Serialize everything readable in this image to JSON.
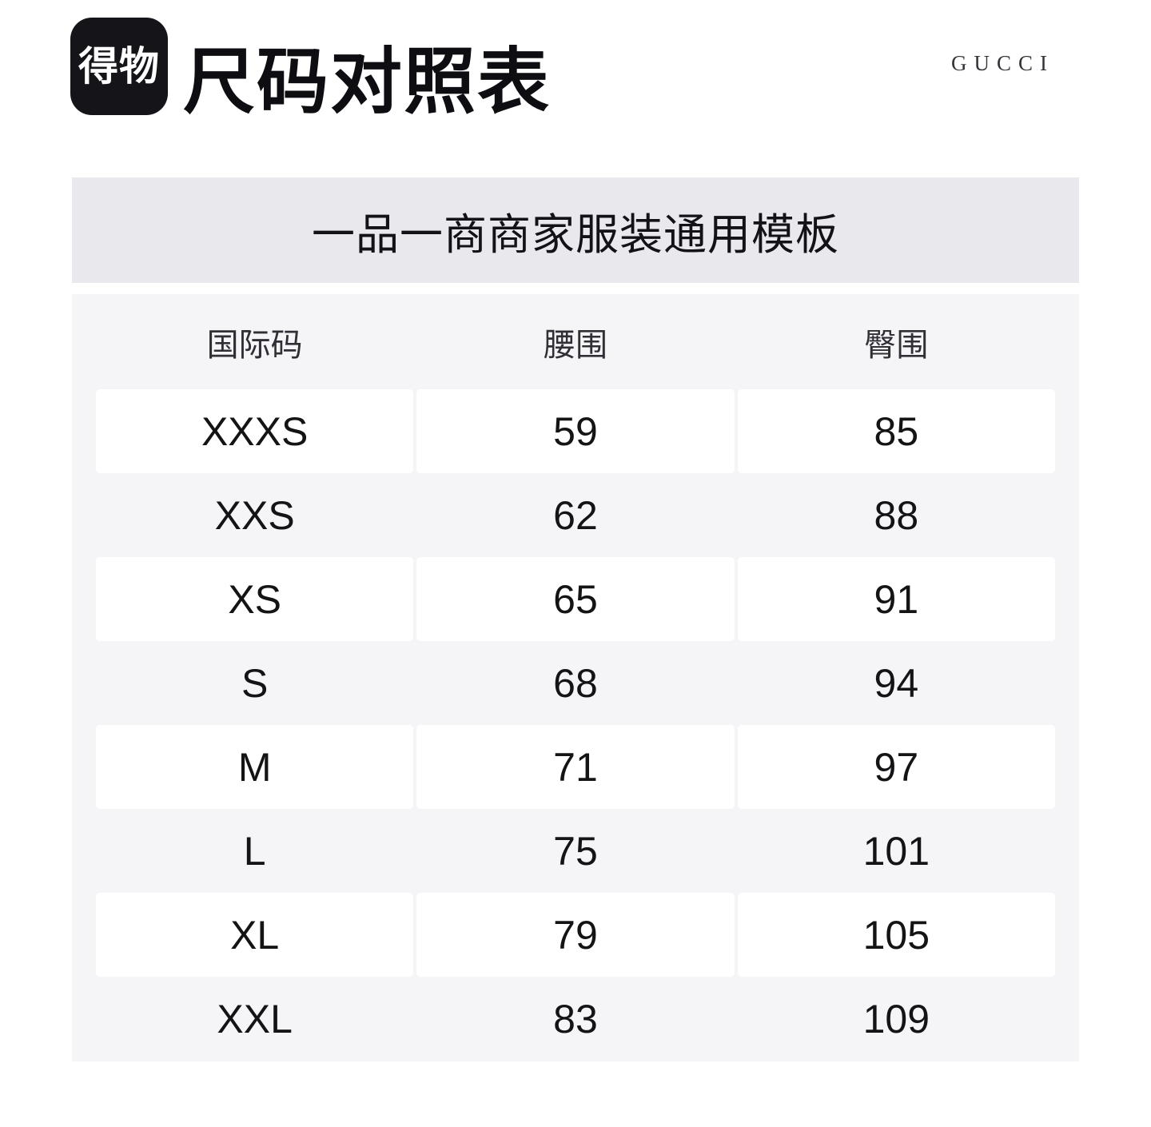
{
  "header": {
    "logo_text": "得物",
    "title": "尺码对照表",
    "brand": "GUCCI"
  },
  "banner": {
    "text": "一品一商商家服装通用模板"
  },
  "size_table": {
    "columns": [
      "国际码",
      "腰围",
      "臀围"
    ],
    "rows": [
      {
        "size": "XXXS",
        "waist": "59",
        "hip": "85"
      },
      {
        "size": "XXS",
        "waist": "62",
        "hip": "88"
      },
      {
        "size": "XS",
        "waist": "65",
        "hip": "91"
      },
      {
        "size": "S",
        "waist": "68",
        "hip": "94"
      },
      {
        "size": "M",
        "waist": "71",
        "hip": "97"
      },
      {
        "size": "L",
        "waist": "75",
        "hip": "101"
      },
      {
        "size": "XL",
        "waist": "79",
        "hip": "105"
      },
      {
        "size": "XXL",
        "waist": "83",
        "hip": "109"
      }
    ]
  },
  "colors": {
    "logo_bg": "#141419",
    "banner_bg": "#e9e8ed",
    "table_bg": "#f5f4f7",
    "row_cell_bg": "#ffffff",
    "text": "#141417"
  }
}
